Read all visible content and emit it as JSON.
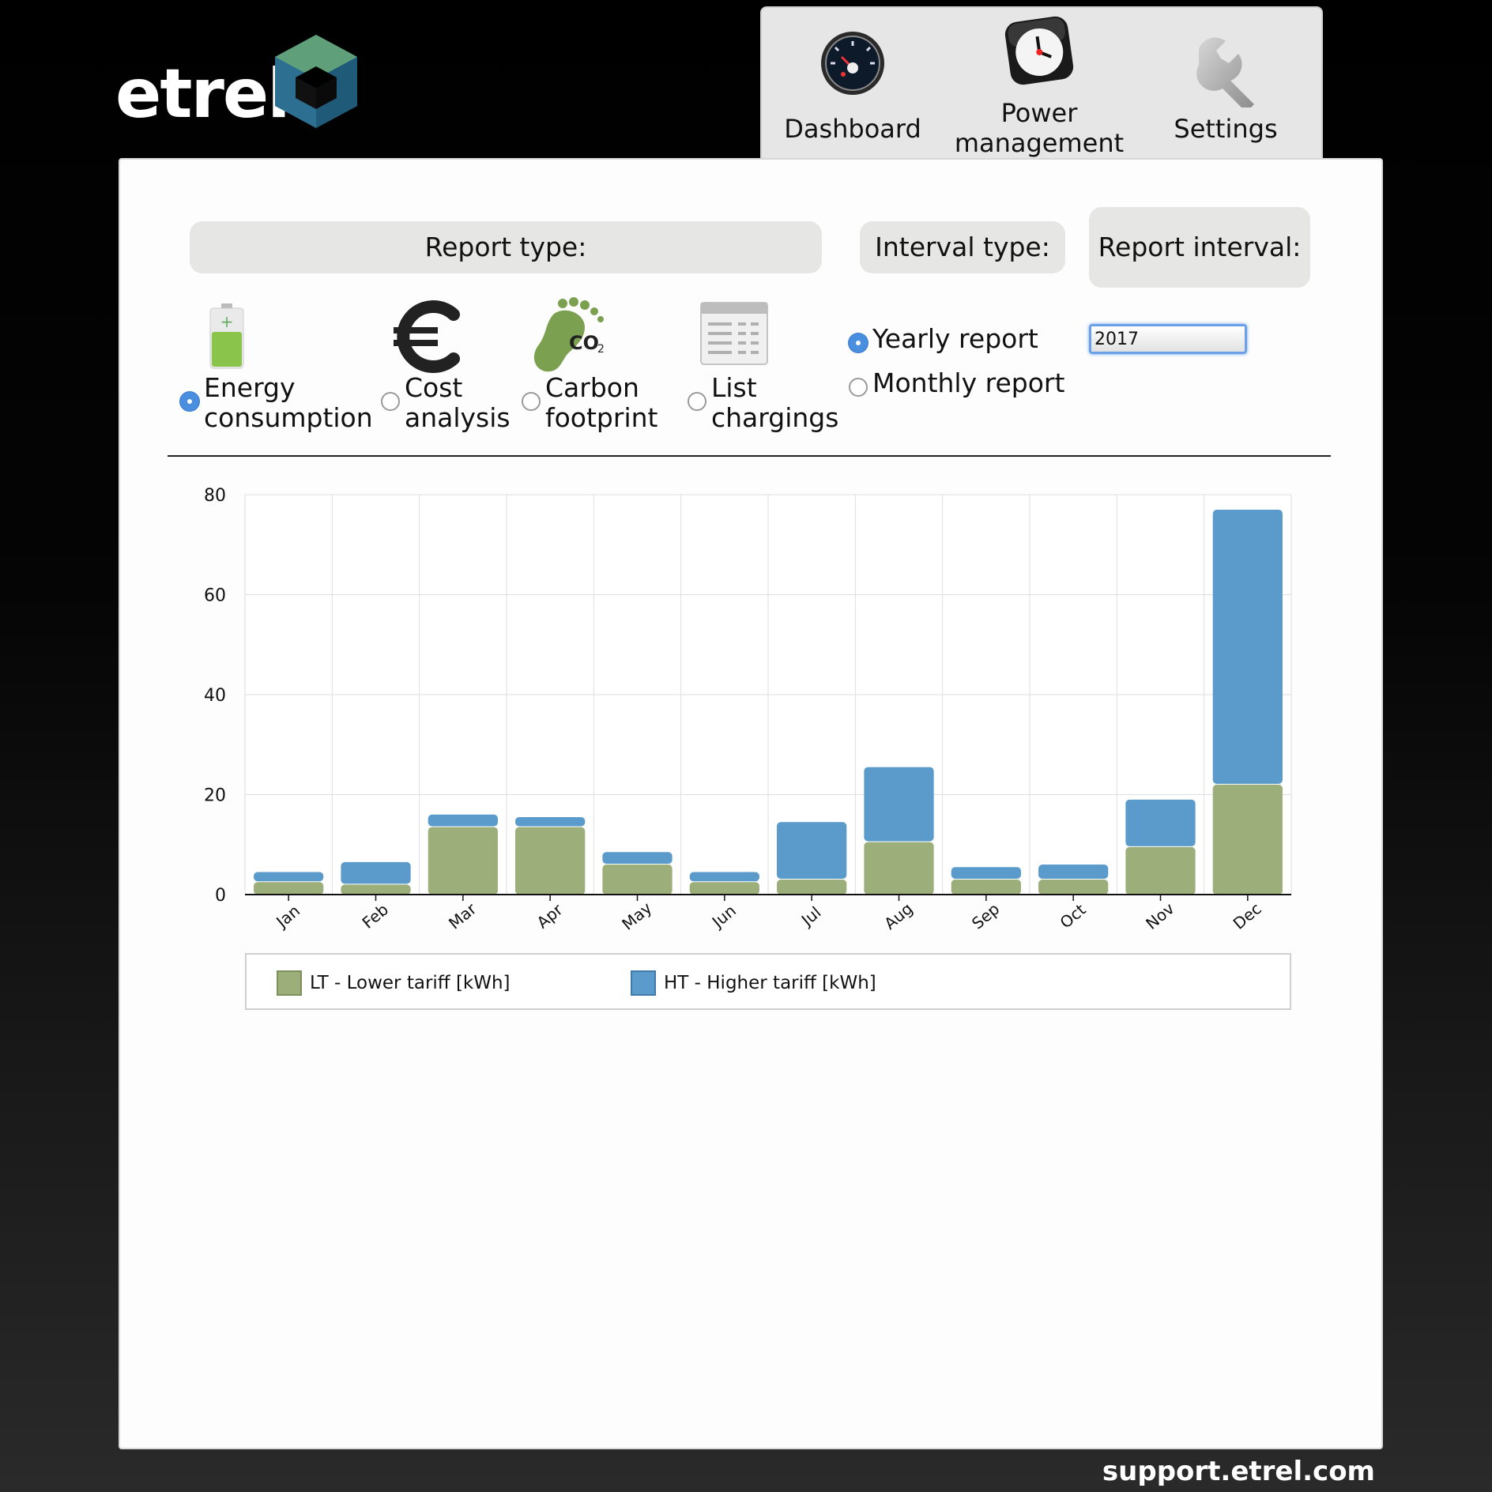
{
  "brand": {
    "name": "etrel"
  },
  "nav": {
    "items": [
      {
        "label": "Dashboard",
        "icon": "dashboard-gauge-icon"
      },
      {
        "label": "Power management",
        "icon": "clock-icon"
      },
      {
        "label": "Settings",
        "icon": "wrench-icon"
      }
    ]
  },
  "filters": {
    "report_type_label": "Report type:",
    "interval_type_label": "Interval type:",
    "report_interval_label": "Report interval:",
    "report_types": [
      {
        "label": "Energy consumption",
        "selected": true,
        "icon": "battery-icon"
      },
      {
        "label": "Cost analysis",
        "selected": false,
        "icon": "euro-icon"
      },
      {
        "label": "Carbon footprint",
        "selected": false,
        "icon": "co2-footprint-icon"
      },
      {
        "label": "List chargings",
        "selected": false,
        "icon": "list-table-icon"
      }
    ],
    "interval_types": [
      {
        "label": "Yearly report",
        "selected": true
      },
      {
        "label": "Monthly report",
        "selected": false
      }
    ],
    "report_interval_value": "2017"
  },
  "chart_data": {
    "type": "bar",
    "stacked": true,
    "categories": [
      "Jan",
      "Feb",
      "Mar",
      "Apr",
      "May",
      "Jun",
      "Jul",
      "Aug",
      "Sep",
      "Oct",
      "Nov",
      "Dec"
    ],
    "series": [
      {
        "name": "LT - Lower tariff [kWh]",
        "color": "#9cae79",
        "values": [
          2.5,
          2,
          13.5,
          13.5,
          6,
          2.5,
          3,
          10.5,
          3,
          3,
          9.5,
          22
        ]
      },
      {
        "name": "HT - Higher tariff [kWh]",
        "color": "#5b9bcc",
        "values": [
          2,
          4.5,
          2.5,
          2,
          2.5,
          2,
          11.5,
          15,
          2.5,
          3,
          9.5,
          55
        ]
      }
    ],
    "yticks": [
      0,
      20,
      40,
      60,
      80
    ],
    "ylim": [
      0,
      80
    ],
    "grid": true,
    "legend": "bottom"
  },
  "footer": {
    "support_link": "support.etrel.com"
  }
}
